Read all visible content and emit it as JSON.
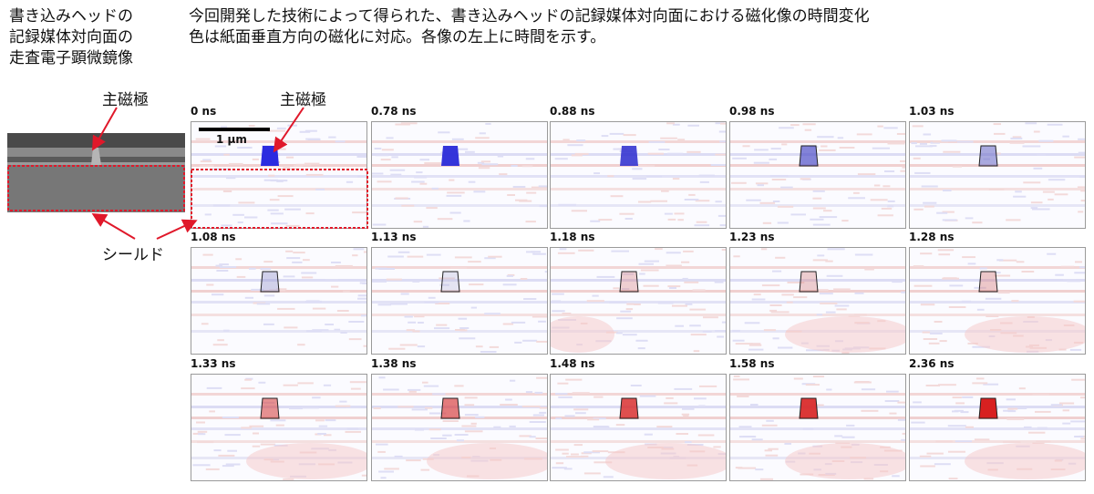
{
  "left_caption": [
    "書き込みヘッドの",
    "記録媒体対向面の",
    "走査電子顕微鏡像"
  ],
  "title_lines": [
    "今回開発した技術によって得られた、書き込みヘッドの記録媒体対向面における磁化像の時間変化",
    "色は紙面垂直方向の磁化に対応。各像の左上に時間を示す。"
  ],
  "labels": {
    "main_pole_left": "主磁極",
    "main_pole_right": "主磁極",
    "shield": "シールド",
    "scale_bar": "1 µm"
  },
  "colors": {
    "positive_magnetization": "#d63a3a",
    "negative_magnetization": "#2a2ad8",
    "annotation_red": "#e0182a"
  },
  "panels": [
    {
      "time": "0 ns",
      "pole": "#2b2be0",
      "pole_level": 1.0
    },
    {
      "time": "0.78 ns",
      "pole": "#2d2dd8",
      "pole_level": 0.95
    },
    {
      "time": "0.88 ns",
      "pole": "#3434d0",
      "pole_level": 0.85
    },
    {
      "time": "0.98 ns",
      "pole": "#5050c8",
      "pole_level": 0.6
    },
    {
      "time": "1.03 ns",
      "pole": "#7070c8",
      "pole_level": 0.45
    },
    {
      "time": "1.08 ns",
      "pole": "#9a9ad0",
      "pole_level": 0.25
    },
    {
      "time": "1.13 ns",
      "pole": "#b8b8d8",
      "pole_level": 0.12
    },
    {
      "time": "1.18 ns",
      "pole": "#d98080",
      "pole_level": 0.15
    },
    {
      "time": "1.23 ns",
      "pole": "#d88888",
      "pole_level": 0.2
    },
    {
      "time": "1.28 ns",
      "pole": "#d88484",
      "pole_level": 0.25
    },
    {
      "time": "1.33 ns",
      "pole": "#d85050",
      "pole_level": 0.5
    },
    {
      "time": "1.38 ns",
      "pole": "#d84444",
      "pole_level": 0.6
    },
    {
      "time": "1.48 ns",
      "pole": "#d83030",
      "pole_level": 0.8
    },
    {
      "time": "1.58 ns",
      "pole": "#d82828",
      "pole_level": 0.9
    },
    {
      "time": "2.36 ns",
      "pole": "#d82020",
      "pole_level": 1.0
    }
  ]
}
